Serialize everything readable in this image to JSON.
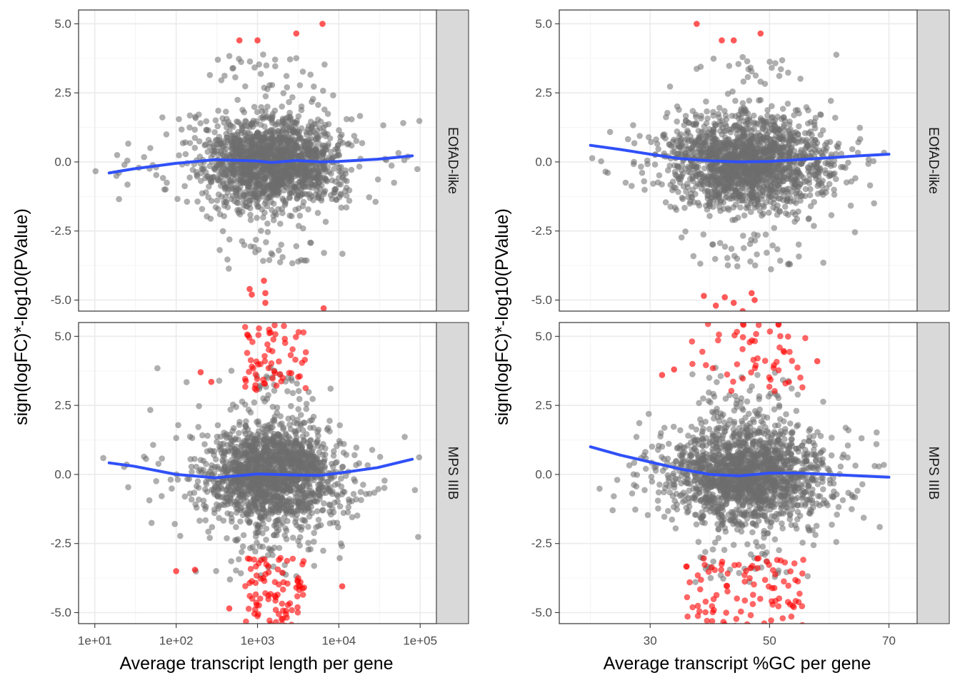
{
  "colors": {
    "panel_bg": "#ffffff",
    "grid_major": "#ebebeb",
    "grid_minor": "#f5f5f5",
    "panel_border": "#333333",
    "strip_fill": "#d9d9d9",
    "point_ns": "#6e6e6e",
    "point_sig": "#ff0000",
    "smooth_line": "#3050f8"
  },
  "strips": [
    "EOfAD-like",
    "MPS IIIB"
  ],
  "axis_titles": {
    "y": "sign(logFC)*-log10(PValue)",
    "x_left": "Average transcript length per gene",
    "x_right": "Average transcript %GC per gene"
  },
  "chart_data": [
    {
      "type": "scatter",
      "panel": "EOfAD-like / length",
      "facet": "EOfAD-like",
      "x_variable": "length",
      "xscale": "log10",
      "xlim": [
        10,
        100000
      ],
      "ylim": [
        -5.4,
        5.5
      ],
      "xticks": [
        10,
        100,
        1000,
        10000,
        100000
      ],
      "xtick_labels": [
        "1e+01",
        "1e+02",
        "1e+03",
        "1e+04",
        "1e+05"
      ],
      "yticks": [
        5.0,
        2.5,
        0.0,
        -2.5,
        -5.0
      ],
      "ytick_labels": [
        "5.0",
        "2.5",
        "0.0",
        "-2.5",
        "-5.0"
      ],
      "cloud": {
        "x_center": 1500,
        "x_log_sd": 0.42,
        "y_sd": 0.85
      },
      "significant_points": [
        [
          600,
          4.4
        ],
        [
          1000,
          4.4
        ],
        [
          3000,
          4.65
        ],
        [
          6300,
          5.0
        ],
        [
          800,
          -4.6
        ],
        [
          850,
          -4.8
        ],
        [
          1200,
          -4.3
        ],
        [
          1250,
          -4.75
        ],
        [
          1250,
          -5.1
        ],
        [
          6500,
          -5.3
        ]
      ],
      "smooth": {
        "x": [
          15,
          30,
          100,
          300,
          1000,
          1500,
          3000,
          6000,
          10000,
          30000,
          80000
        ],
        "y": [
          -0.4,
          -0.25,
          -0.05,
          0.08,
          0.03,
          -0.02,
          0.05,
          0.0,
          0.02,
          0.1,
          0.22
        ]
      }
    },
    {
      "type": "scatter",
      "panel": "EOfAD-like / GC",
      "facet": "EOfAD-like",
      "x_variable": "GC",
      "xscale": "linear",
      "xlim": [
        17.5,
        72
      ],
      "ylim": [
        -5.4,
        5.5
      ],
      "xticks": [
        30,
        50,
        70
      ],
      "xtick_labels": [
        "30",
        "50",
        "70"
      ],
      "yticks": [
        5.0,
        2.5,
        0.0,
        -2.5,
        -5.0
      ],
      "ytick_labels": [
        "5.0",
        "2.5",
        "0.0",
        "-2.5",
        "-5.0"
      ],
      "cloud": {
        "x_center": 46,
        "x_sd": 6.5,
        "y_sd": 0.85
      },
      "significant_points": [
        [
          37.8,
          5.0
        ],
        [
          42,
          4.4
        ],
        [
          44,
          4.4
        ],
        [
          48.5,
          4.65
        ],
        [
          39,
          -4.85
        ],
        [
          42.5,
          -4.9
        ],
        [
          41,
          -5.2
        ],
        [
          44,
          -5.1
        ],
        [
          45.5,
          -5.4
        ],
        [
          47,
          -4.75
        ],
        [
          47.5,
          -5.0
        ]
      ],
      "smooth": {
        "x": [
          20,
          25,
          30,
          35,
          40,
          45,
          50,
          55,
          60,
          65,
          70
        ],
        "y": [
          0.6,
          0.45,
          0.28,
          0.12,
          0.04,
          0.0,
          0.02,
          0.08,
          0.15,
          0.22,
          0.28
        ]
      }
    },
    {
      "type": "scatter",
      "panel": "MPS IIIB / length",
      "facet": "MPS IIIB",
      "x_variable": "length",
      "xscale": "log10",
      "xlim": [
        10,
        100000
      ],
      "ylim": [
        -5.4,
        5.5
      ],
      "xticks": [
        10,
        100,
        1000,
        10000,
        100000
      ],
      "xtick_labels": [
        "1e+01",
        "1e+02",
        "1e+03",
        "1e+04",
        "1e+05"
      ],
      "yticks": [
        5.0,
        2.5,
        0.0,
        -2.5,
        -5.0
      ],
      "ytick_labels": [
        "5.0",
        "2.5",
        "0.0",
        "-2.5",
        "-5.0"
      ],
      "cloud": {
        "x_center": 1500,
        "x_log_sd": 0.42,
        "y_sd": 0.95
      },
      "significant_points": [
        [
          200,
          3.7
        ],
        [
          270,
          3.35
        ],
        [
          100,
          -3.5
        ],
        [
          170,
          -3.45
        ],
        [
          450,
          -4.85
        ],
        [
          11000,
          -4.05
        ]
      ],
      "significant_cluster": {
        "x_range": [
          700,
          4000
        ],
        "upper_y": [
          3.0,
          5.5
        ],
        "lower_y": [
          -5.5,
          -3.0
        ]
      },
      "smooth": {
        "x": [
          15,
          30,
          100,
          300,
          1000,
          3000,
          6000,
          10000,
          30000,
          80000
        ],
        "y": [
          0.42,
          0.3,
          0.0,
          -0.12,
          0.02,
          -0.02,
          -0.03,
          0.05,
          0.25,
          0.55
        ]
      }
    },
    {
      "type": "scatter",
      "panel": "MPS IIIB / GC",
      "facet": "MPS IIIB",
      "x_variable": "GC",
      "xscale": "linear",
      "xlim": [
        17.5,
        72
      ],
      "ylim": [
        -5.4,
        5.5
      ],
      "xticks": [
        30,
        50,
        70
      ],
      "xtick_labels": [
        "30",
        "50",
        "70"
      ],
      "yticks": [
        5.0,
        2.5,
        0.0,
        -2.5,
        -5.0
      ],
      "ytick_labels": [
        "5.0",
        "2.5",
        "0.0",
        "-2.5",
        "-5.0"
      ],
      "cloud": {
        "x_center": 46,
        "x_sd": 6.5,
        "y_sd": 0.95
      },
      "significant_points": [
        [
          32,
          3.6
        ],
        [
          58,
          4.1
        ],
        [
          34,
          3.8
        ]
      ],
      "significant_cluster": {
        "x_range": [
          36,
          56
        ],
        "upper_y": [
          3.0,
          5.5
        ],
        "lower_y": [
          -5.5,
          -3.0
        ]
      },
      "smooth": {
        "x": [
          20,
          25,
          30,
          35,
          40,
          45,
          50,
          55,
          60,
          65,
          70
        ],
        "y": [
          1.0,
          0.7,
          0.45,
          0.2,
          0.0,
          -0.05,
          0.05,
          0.05,
          0.0,
          -0.05,
          -0.1
        ]
      }
    }
  ]
}
